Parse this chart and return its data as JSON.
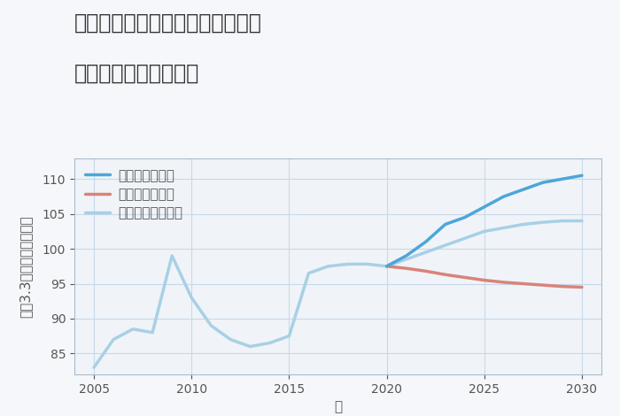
{
  "title_line1": "愛知県清須市西枇杷島町下砂入の",
  "title_line2": "中古戸建ての価格推移",
  "xlabel": "年",
  "ylabel": "坪（3.3㎡）単価（万円）",
  "background_color": "#f5f7fa",
  "plot_bg_color": "#f0f4f8",
  "ylim": [
    82,
    113
  ],
  "xlim": [
    2004,
    2031
  ],
  "yticks": [
    85,
    90,
    95,
    100,
    105,
    110
  ],
  "xticks": [
    2005,
    2010,
    2015,
    2020,
    2025,
    2030
  ],
  "grid_color": "#c8d8ea",
  "normal_scenario": {
    "label": "ノーマルシナリオ",
    "color": "#a8d0e6",
    "linewidth": 2.5,
    "years": [
      2005,
      2006,
      2007,
      2008,
      2009,
      2010,
      2011,
      2012,
      2013,
      2014,
      2015,
      2016,
      2017,
      2018,
      2019,
      2020,
      2021,
      2022,
      2023,
      2024,
      2025,
      2026,
      2027,
      2028,
      2029,
      2030
    ],
    "values": [
      83.0,
      87.0,
      88.5,
      88.0,
      99.0,
      93.0,
      89.0,
      87.0,
      86.0,
      86.5,
      87.5,
      96.5,
      97.5,
      97.8,
      97.8,
      97.5,
      98.5,
      99.5,
      100.5,
      101.5,
      102.5,
      103.0,
      103.5,
      103.8,
      104.0,
      104.0
    ]
  },
  "good_scenario": {
    "label": "グッドシナリオ",
    "color": "#4da6d9",
    "linewidth": 2.5,
    "years": [
      2020,
      2021,
      2022,
      2023,
      2024,
      2025,
      2026,
      2027,
      2028,
      2029,
      2030
    ],
    "values": [
      97.5,
      99.0,
      101.0,
      103.5,
      104.5,
      106.0,
      107.5,
      108.5,
      109.5,
      110.0,
      110.5
    ]
  },
  "bad_scenario": {
    "label": "バッドシナリオ",
    "color": "#d9837a",
    "linewidth": 2.5,
    "years": [
      2020,
      2021,
      2022,
      2023,
      2024,
      2025,
      2026,
      2027,
      2028,
      2029,
      2030
    ],
    "values": [
      97.5,
      97.2,
      96.8,
      96.3,
      95.9,
      95.5,
      95.2,
      95.0,
      94.8,
      94.6,
      94.5
    ]
  },
  "legend_fontsize": 11,
  "title_fontsize": 17,
  "tick_fontsize": 10,
  "axis_label_fontsize": 11
}
